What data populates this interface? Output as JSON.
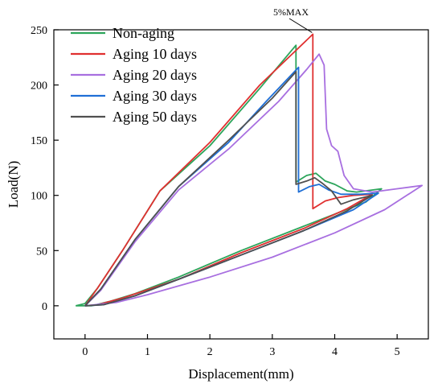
{
  "chart_data": {
    "type": "line",
    "title": "",
    "xlabel": "Displacement(mm)",
    "ylabel": "Load(N)",
    "xlim": [
      -0.5,
      5.5
    ],
    "ylim": [
      -30,
      250
    ],
    "xticks": [
      0,
      1,
      2,
      3,
      4,
      5
    ],
    "yticks": [
      0,
      50,
      100,
      150,
      200,
      250
    ],
    "grid": false,
    "legend_position": "top-left",
    "annotation": {
      "text": "5%MAX",
      "point": [
        3.65,
        246
      ]
    },
    "series": [
      {
        "name": "Non-aging",
        "color": "#2ca55b",
        "points": [
          [
            -0.15,
            0
          ],
          [
            0.0,
            2
          ],
          [
            0.2,
            16
          ],
          [
            0.6,
            50
          ],
          [
            1.2,
            104
          ],
          [
            2.0,
            145
          ],
          [
            2.8,
            197
          ],
          [
            3.38,
            236
          ],
          [
            3.38,
            112
          ],
          [
            3.55,
            118
          ],
          [
            3.7,
            120
          ],
          [
            3.85,
            113
          ],
          [
            4.0,
            110
          ],
          [
            4.2,
            104
          ],
          [
            4.35,
            103
          ],
          [
            4.75,
            106
          ],
          [
            4.5,
            94
          ],
          [
            3.5,
            72
          ],
          [
            2.5,
            50
          ],
          [
            1.5,
            26
          ],
          [
            0.8,
            11
          ],
          [
            0.4,
            4
          ],
          [
            0.1,
            0
          ],
          [
            -0.15,
            0
          ]
        ]
      },
      {
        "name": "Aging 10 days",
        "color": "#e03030",
        "points": [
          [
            0.0,
            0
          ],
          [
            0.2,
            16
          ],
          [
            0.6,
            50
          ],
          [
            1.2,
            104
          ],
          [
            2.0,
            148
          ],
          [
            2.8,
            200
          ],
          [
            3.65,
            246
          ],
          [
            3.65,
            88
          ],
          [
            3.85,
            95
          ],
          [
            4.05,
            98
          ],
          [
            4.3,
            100
          ],
          [
            4.6,
            101
          ],
          [
            4.2,
            88
          ],
          [
            3.5,
            70
          ],
          [
            2.5,
            48
          ],
          [
            1.5,
            24
          ],
          [
            0.6,
            7
          ],
          [
            0.2,
            1
          ],
          [
            0.0,
            0
          ]
        ]
      },
      {
        "name": "Aging 20 days",
        "color": "#a86fe0",
        "points": [
          [
            0.0,
            0
          ],
          [
            0.25,
            14
          ],
          [
            0.8,
            58
          ],
          [
            1.5,
            105
          ],
          [
            2.3,
            142
          ],
          [
            3.1,
            185
          ],
          [
            3.55,
            214
          ],
          [
            3.75,
            228
          ],
          [
            3.83,
            218
          ],
          [
            3.87,
            160
          ],
          [
            3.95,
            145
          ],
          [
            4.05,
            140
          ],
          [
            4.15,
            118
          ],
          [
            4.3,
            106
          ],
          [
            4.6,
            103
          ],
          [
            5.0,
            106
          ],
          [
            5.4,
            109
          ],
          [
            4.8,
            87
          ],
          [
            4.0,
            66
          ],
          [
            3.0,
            44
          ],
          [
            2.0,
            26
          ],
          [
            1.0,
            10
          ],
          [
            0.5,
            3
          ],
          [
            0.0,
            0
          ]
        ]
      },
      {
        "name": "Aging 30 days",
        "color": "#1f6fd6",
        "points": [
          [
            0.0,
            0
          ],
          [
            0.25,
            15
          ],
          [
            0.8,
            60
          ],
          [
            1.5,
            108
          ],
          [
            2.3,
            148
          ],
          [
            2.9,
            185
          ],
          [
            3.42,
            216
          ],
          [
            3.42,
            103
          ],
          [
            3.6,
            108
          ],
          [
            3.75,
            110
          ],
          [
            3.9,
            105
          ],
          [
            4.1,
            101
          ],
          [
            4.4,
            101
          ],
          [
            4.7,
            102
          ],
          [
            4.3,
            87
          ],
          [
            3.5,
            68
          ],
          [
            2.5,
            46
          ],
          [
            1.5,
            24
          ],
          [
            0.8,
            9
          ],
          [
            0.3,
            1
          ],
          [
            0.0,
            0
          ]
        ]
      },
      {
        "name": "Aging 50 days",
        "color": "#505050",
        "points": [
          [
            0.0,
            0
          ],
          [
            0.25,
            15
          ],
          [
            0.8,
            60
          ],
          [
            1.5,
            108
          ],
          [
            2.3,
            150
          ],
          [
            3.0,
            188
          ],
          [
            3.38,
            212
          ],
          [
            3.38,
            110
          ],
          [
            3.55,
            113
          ],
          [
            3.68,
            116
          ],
          [
            3.8,
            111
          ],
          [
            3.95,
            104
          ],
          [
            4.1,
            92
          ],
          [
            4.3,
            96
          ],
          [
            4.6,
            100
          ],
          [
            4.2,
            86
          ],
          [
            3.5,
            68
          ],
          [
            2.5,
            46
          ],
          [
            1.5,
            24
          ],
          [
            0.8,
            9
          ],
          [
            0.3,
            1
          ],
          [
            0.0,
            0
          ]
        ]
      }
    ]
  }
}
